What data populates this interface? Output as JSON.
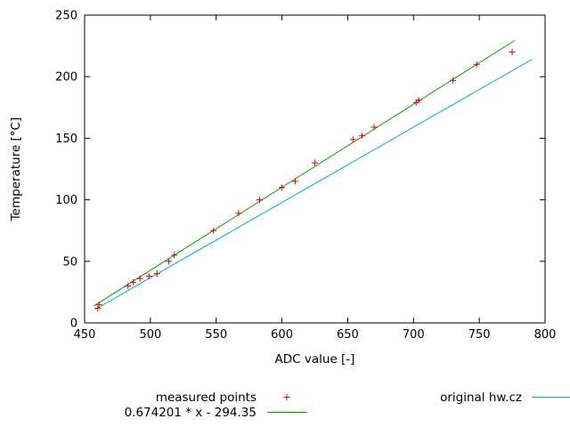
{
  "chart_data": {
    "type": "scatter",
    "title": "",
    "xlabel": "ADC value [-]",
    "ylabel": "Temperature [°C]",
    "xlim": [
      450,
      800
    ],
    "ylim": [
      0,
      250
    ],
    "xticks": [
      450,
      500,
      550,
      600,
      650,
      700,
      750,
      800
    ],
    "yticks": [
      0,
      50,
      100,
      150,
      200,
      250
    ],
    "grid": false,
    "legend_position": "bottom",
    "series": [
      {
        "name": "measured points",
        "kind": "points",
        "marker": "plus",
        "color": "#dd0000",
        "points": [
          [
            460,
            12
          ],
          [
            461,
            15
          ],
          [
            483,
            30
          ],
          [
            487,
            33
          ],
          [
            492,
            36
          ],
          [
            499,
            38
          ],
          [
            505,
            40
          ],
          [
            514,
            50
          ],
          [
            518,
            55
          ],
          [
            548,
            75
          ],
          [
            567,
            89
          ],
          [
            583,
            100
          ],
          [
            600,
            110
          ],
          [
            610,
            115
          ],
          [
            625,
            130
          ],
          [
            654,
            149
          ],
          [
            661,
            152
          ],
          [
            670,
            159
          ],
          [
            702,
            179
          ],
          [
            704,
            181
          ],
          [
            730,
            197
          ],
          [
            748,
            210
          ],
          [
            775,
            220
          ]
        ]
      },
      {
        "name": "0.674201 * x - 294.35",
        "kind": "line",
        "color": "#00a000",
        "slope": 0.674201,
        "intercept": -294.35,
        "x_range": [
          457,
          777
        ]
      },
      {
        "name": "original hw.cz",
        "kind": "line",
        "color": "#00a8e0",
        "points": [
          [
            458,
            11
          ],
          [
            790,
            214
          ]
        ]
      }
    ]
  }
}
